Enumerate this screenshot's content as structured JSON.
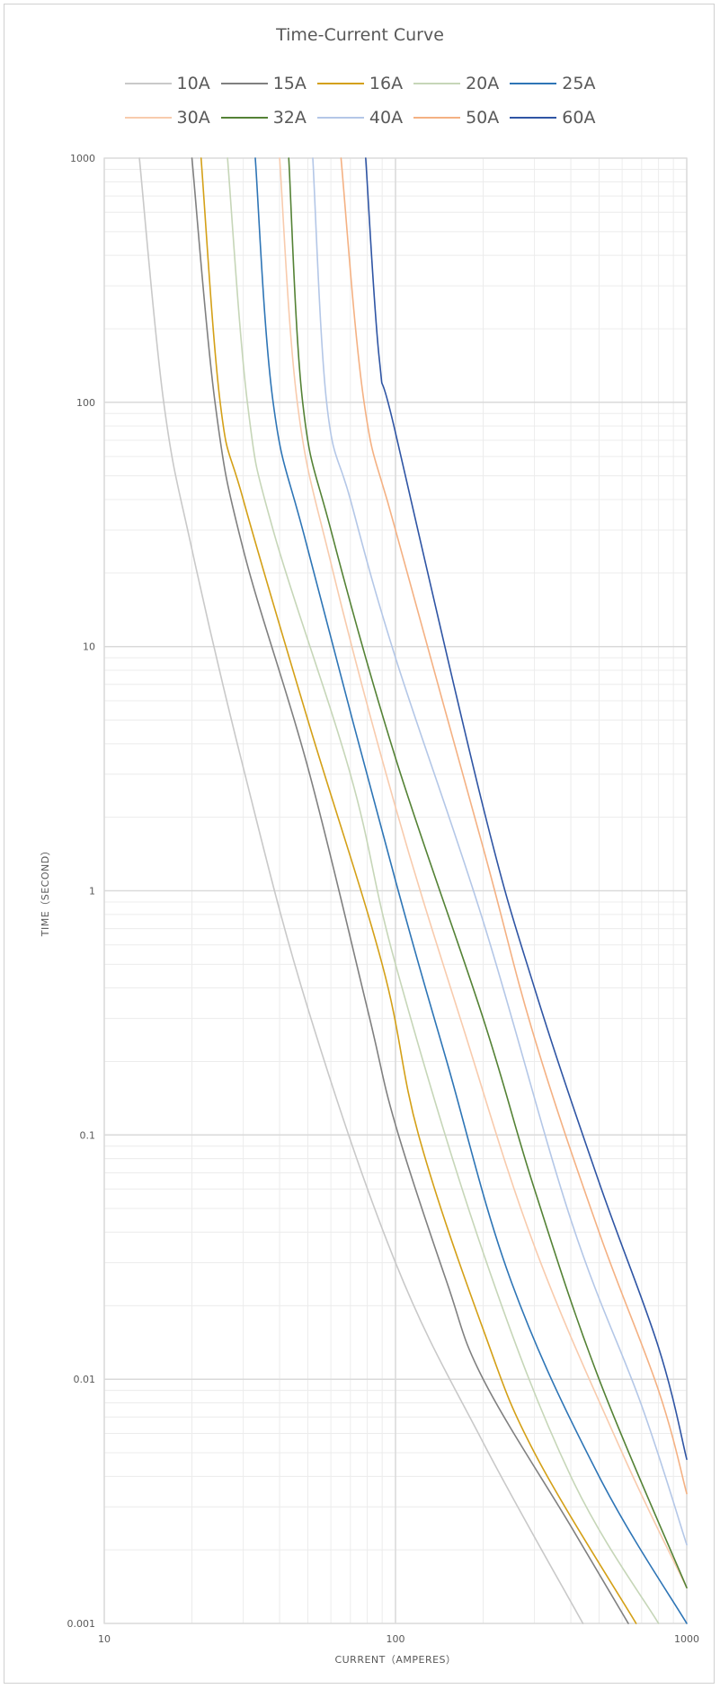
{
  "chart_data": {
    "type": "line",
    "title": "Time-Current Curve",
    "xlabel": "CURRENT（AMPERES）",
    "ylabel": "TIME（SECOND）",
    "x_scale": "log",
    "y_scale": "log",
    "xlim": [
      10,
      1000
    ],
    "ylim": [
      0.001,
      1000
    ],
    "x_tick_labels": [
      "10",
      "100",
      "1000"
    ],
    "y_tick_labels": [
      "0.001",
      "0.01",
      "0.1",
      "1",
      "10",
      "100",
      "1000"
    ],
    "grid": true,
    "legend_position": "top",
    "series": [
      {
        "name": "10A",
        "color": "#c9c9c9",
        "points": [
          [
            13.2,
            1000
          ],
          [
            16,
            100
          ],
          [
            20,
            25
          ],
          [
            30,
            3.2
          ],
          [
            50,
            0.33
          ],
          [
            100,
            0.03
          ],
          [
            200,
            0.0055
          ],
          [
            440,
            0.001
          ]
        ]
      },
      {
        "name": "15A",
        "color": "#808080",
        "points": [
          [
            20,
            1000
          ],
          [
            24,
            100
          ],
          [
            30,
            25
          ],
          [
            50,
            3.2
          ],
          [
            80,
            0.33
          ],
          [
            100,
            0.11
          ],
          [
            150,
            0.025
          ],
          [
            200,
            0.01
          ],
          [
            400,
            0.0025
          ],
          [
            630,
            0.001
          ]
        ]
      },
      {
        "name": "16A",
        "color": "#d4a017",
        "points": [
          [
            21.5,
            1000
          ],
          [
            25,
            100
          ],
          [
            30,
            40
          ],
          [
            50,
            5
          ],
          [
            90,
            0.5
          ],
          [
            120,
            0.1
          ],
          [
            200,
            0.016
          ],
          [
            300,
            0.005
          ],
          [
            670,
            0.001
          ]
        ]
      },
      {
        "name": "20A",
        "color": "#c6d6b8",
        "points": [
          [
            26.5,
            1000
          ],
          [
            31,
            100
          ],
          [
            38,
            30
          ],
          [
            70,
            3
          ],
          [
            100,
            0.5
          ],
          [
            200,
            0.033
          ],
          [
            400,
            0.004
          ],
          [
            800,
            0.001
          ]
        ]
      },
      {
        "name": "25A",
        "color": "#2e75b6",
        "points": [
          [
            33,
            1000
          ],
          [
            38,
            100
          ],
          [
            50,
            25
          ],
          [
            100,
            1.1
          ],
          [
            150,
            0.2
          ],
          [
            250,
            0.025
          ],
          [
            500,
            0.004
          ],
          [
            1000,
            0.001
          ]
        ]
      },
      {
        "name": "30A",
        "color": "#f8cbad",
        "points": [
          [
            40,
            1000
          ],
          [
            46,
            100
          ],
          [
            60,
            22
          ],
          [
            100,
            2.2
          ],
          [
            170,
            0.28
          ],
          [
            300,
            0.035
          ],
          [
            600,
            0.005
          ],
          [
            1000,
            0.0014
          ]
        ]
      },
      {
        "name": "32A",
        "color": "#548235",
        "points": [
          [
            43,
            1000
          ],
          [
            48,
            100
          ],
          [
            60,
            30
          ],
          [
            100,
            3.5
          ],
          [
            200,
            0.3
          ],
          [
            300,
            0.06
          ],
          [
            500,
            0.01
          ],
          [
            1000,
            0.0014
          ]
        ]
      },
      {
        "name": "40A",
        "color": "#b4c7e7",
        "points": [
          [
            52,
            1000
          ],
          [
            58,
            100
          ],
          [
            70,
            40
          ],
          [
            100,
            9
          ],
          [
            200,
            0.75
          ],
          [
            400,
            0.045
          ],
          [
            700,
            0.0078
          ],
          [
            1000,
            0.0021
          ]
        ]
      },
      {
        "name": "50A",
        "color": "#f4b183",
        "points": [
          [
            65,
            1000
          ],
          [
            78,
            100
          ],
          [
            100,
            30
          ],
          [
            200,
            1.5
          ],
          [
            300,
            0.25
          ],
          [
            500,
            0.04
          ],
          [
            800,
            0.009
          ],
          [
            1000,
            0.0034
          ]
        ]
      },
      {
        "name": "60A",
        "color": "#2f55a4",
        "points": [
          [
            79,
            1000
          ],
          [
            88,
            150
          ],
          [
            100,
            75
          ],
          [
            200,
            2.2
          ],
          [
            300,
            0.4
          ],
          [
            500,
            0.064
          ],
          [
            800,
            0.0135
          ],
          [
            1000,
            0.0047
          ]
        ]
      }
    ]
  }
}
